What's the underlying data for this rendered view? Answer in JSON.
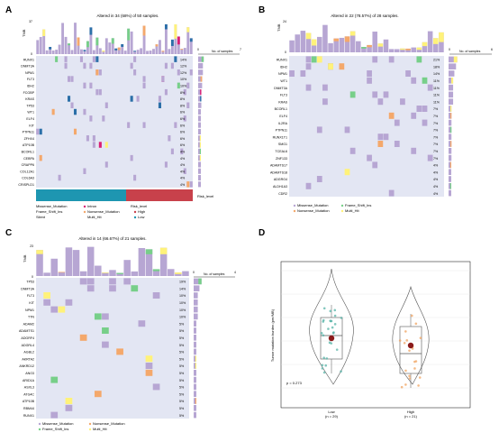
{
  "colors": {
    "missense": "#b7a6d3",
    "frameshift": "#2b6fa8",
    "nonsense": "#f4a86b",
    "multi": "#fff27a",
    "inframe": "#77cf89",
    "silent": "#d91e74",
    "empty": "#e3e6f3",
    "high": "#c8414b",
    "low": "#1e96b1"
  },
  "panels": {
    "A": {
      "letter": "A",
      "title": "Altered in 34 (68%) of 50 samples.",
      "tmb_label": "TMB",
      "tmb_max": "37",
      "tmb_min": "0",
      "axis_left": "0",
      "axis_right": "7",
      "no_label": "No. of samples",
      "genes": [
        "RUNX1",
        "DNMT3A",
        "NPM1",
        "FLT3",
        "IDH2",
        "FCGBP",
        "KRAS",
        "TP53",
        "WT1",
        "ELF4",
        "KIT",
        "PTPN11",
        "ZFHX4",
        "ATP10B",
        "BCORL1",
        "CEBPA",
        "CRAPP6",
        "COL12A1",
        "COL6A3",
        "CRISPLD1"
      ],
      "pcts": [
        "14%",
        "12%",
        "12%",
        "10%",
        "10%",
        "8%",
        "8%",
        "8%",
        "6%",
        "6%",
        "6%",
        "6%",
        "6%",
        "6%",
        "4%",
        "4%",
        "4%",
        "4%",
        "4%",
        "4%"
      ],
      "risk_label": "Risk_level",
      "legend": [
        "Missense_Mutation",
        "Frame_Shift_Ins",
        "Silent",
        "Intron",
        "Nonsense_Mutation",
        "Multi_Hit"
      ],
      "risk_legend_title": "Risk_level",
      "risk_legend": [
        "High",
        "Low"
      ]
    },
    "B": {
      "letter": "B",
      "title": "Altered in 22 (78.57%) of 28 samples.",
      "tmb_label": "TMB",
      "tmb_max": "24",
      "tmb_min": "0",
      "axis_left": "0",
      "axis_right": "6",
      "no_label": "No. of samples",
      "genes": [
        "RUNX1",
        "IDH2",
        "NPM1",
        "WT1",
        "DNMT3A",
        "FLT3",
        "KRAS",
        "BCORL1",
        "ELF4",
        "IL2RA",
        "PTPN11",
        "RUNX1T1",
        "SMG1",
        "TCEAL6",
        "ZNF133",
        "ADAMTS17",
        "ADAMTS18",
        "ADGRG4",
        "ALDH1A3",
        "CDR2"
      ],
      "pcts": [
        "21%",
        "18%",
        "14%",
        "11%",
        "11%",
        "11%",
        "11%",
        "7%",
        "7%",
        "7%",
        "7%",
        "7%",
        "7%",
        "7%",
        "7%",
        "4%",
        "4%",
        "4%",
        "4%",
        "4%"
      ],
      "legend": [
        "Missense_Mutation",
        "Nonsense_Mutation",
        "Frame_Shift_Ins",
        "Multi_Hit"
      ]
    },
    "C": {
      "letter": "C",
      "title": "Altered in 14 (66.67%) of 21 samples.",
      "tmb_label": "TMB",
      "tmb_max": "23",
      "tmb_min": "0",
      "axis_left": "0",
      "axis_right": "4",
      "no_label": "No. of samples",
      "genes": [
        "TP53",
        "DNMT3A",
        "FLT3",
        "KIT",
        "NPM1",
        "TTN",
        "ADAM2",
        "ADAMTS1",
        "ADGRF4",
        "ADGRL4",
        "AGBL2",
        "AKRTA2",
        "ANKRD12",
        "ANO3",
        "ARID1A",
        "ASXL3",
        "ATG4C",
        "ATP10B",
        "RBM44",
        "RUNX1"
      ],
      "pcts": [
        "19%",
        "14%",
        "10%",
        "10%",
        "10%",
        "10%",
        "5%",
        "5%",
        "5%",
        "5%",
        "5%",
        "5%",
        "5%",
        "5%",
        "5%",
        "5%",
        "5%",
        "5%",
        "5%",
        "5%"
      ],
      "legend": [
        "Missense_Mutation",
        "Frame_Shift_Ins",
        "Nonsense_Mutation",
        "Multi_Hit"
      ]
    },
    "D": {
      "letter": "D",
      "ylabel": "Tumor mutation burden (per/MB)",
      "pvalue": "p = 0.273",
      "groups": [
        {
          "name": "Low",
          "n": "(n = 29)"
        },
        {
          "name": "High",
          "n": "(n = 21)"
        }
      ]
    }
  },
  "chart_data": {
    "type": "violin",
    "ylabel": "Tumor mutation burden (per/MB)",
    "categories": [
      "Low",
      "High"
    ],
    "annotation": "p = 0.273",
    "medians": [
      0.52,
      0.45
    ],
    "means": [
      0.55,
      0.48
    ]
  }
}
